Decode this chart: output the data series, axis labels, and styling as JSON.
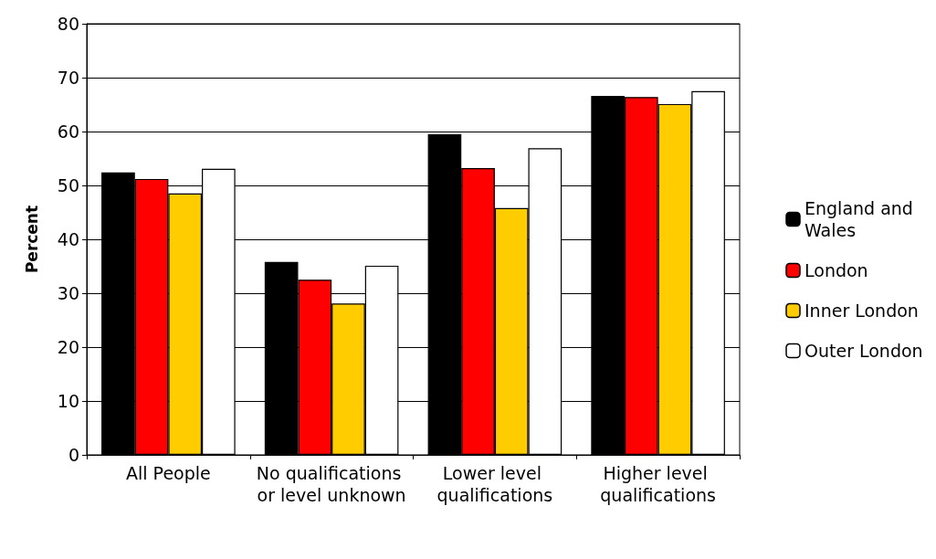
{
  "chart_data": {
    "type": "bar",
    "ylabel": "Percent",
    "categories": [
      "All People",
      "No qualifications or level unknown",
      "Lower level qualifications",
      "Higher level qualifications"
    ],
    "series": [
      {
        "name": "England and Wales",
        "color": "#000000",
        "values": [
          52.4,
          35.8,
          59.5,
          66.6
        ]
      },
      {
        "name": "London",
        "color": "#ff0000",
        "values": [
          51.2,
          32.5,
          53.2,
          66.4
        ]
      },
      {
        "name": "Inner London",
        "color": "#ffcc00",
        "values": [
          48.5,
          28.1,
          45.8,
          65.1
        ]
      },
      {
        "name": "Outer London",
        "color": "#ffffff",
        "values": [
          53.1,
          35.1,
          56.9,
          67.5
        ]
      }
    ],
    "ylim": [
      0,
      80
    ],
    "yticks": [
      0,
      10,
      20,
      30,
      40,
      50,
      60,
      70,
      80
    ],
    "grid": "y",
    "legend": "right"
  }
}
